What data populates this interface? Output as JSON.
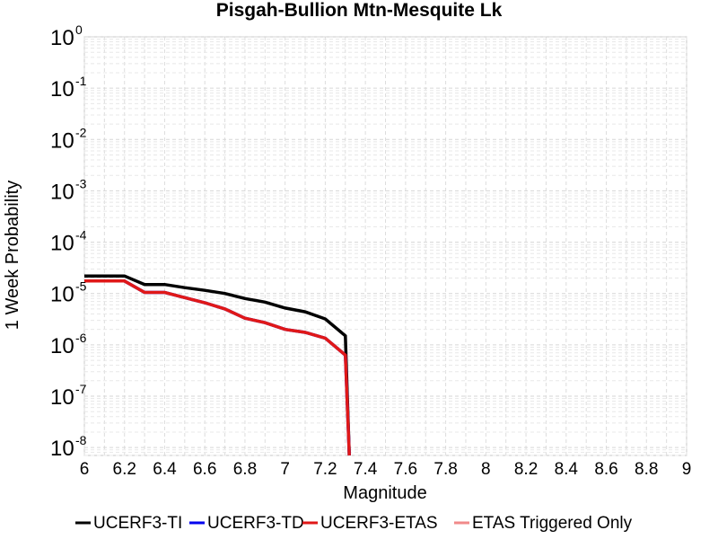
{
  "chart_data": {
    "type": "line",
    "title": "Pisgah-Bullion Mtn-Mesquite Lk",
    "xlabel": "Magnitude",
    "ylabel": "1 Week Probability",
    "x_scale": "linear",
    "y_scale": "log",
    "xlim": [
      6,
      9
    ],
    "ylim": [
      7e-09,
      1
    ],
    "x_ticks": [
      "6",
      "6.2",
      "6.4",
      "6.6",
      "6.8",
      "7",
      "7.2",
      "7.4",
      "7.6",
      "7.8",
      "8",
      "8.2",
      "8.4",
      "8.6",
      "8.8",
      "9"
    ],
    "y_ticks": [
      {
        "base": "10",
        "exp": "0",
        "value": 1
      },
      {
        "base": "10",
        "exp": "-1",
        "value": 0.1
      },
      {
        "base": "10",
        "exp": "-2",
        "value": 0.01
      },
      {
        "base": "10",
        "exp": "-3",
        "value": 0.001
      },
      {
        "base": "10",
        "exp": "-4",
        "value": 0.0001
      },
      {
        "base": "10",
        "exp": "-5",
        "value": 1e-05
      },
      {
        "base": "10",
        "exp": "-6",
        "value": 1e-06
      },
      {
        "base": "10",
        "exp": "-7",
        "value": 1e-07
      },
      {
        "base": "10",
        "exp": "-8",
        "value": 1e-08
      }
    ],
    "grid": true,
    "legend_position": "bottom",
    "series": [
      {
        "name": "UCERF3-TI",
        "color": "#000000",
        "x": [
          6.0,
          6.1,
          6.2,
          6.3,
          6.4,
          6.5,
          6.6,
          6.7,
          6.8,
          6.9,
          7.0,
          7.1,
          7.2,
          7.3,
          7.32
        ],
        "y": [
          2.2e-05,
          2.2e-05,
          2.2e-05,
          1.5e-05,
          1.5e-05,
          1.3e-05,
          1.15e-05,
          1e-05,
          8e-06,
          6.8e-06,
          5.2e-06,
          4.4e-06,
          3.2e-06,
          1.5e-06,
          7e-09
        ]
      },
      {
        "name": "UCERF3-TD",
        "color": "#0000ee",
        "x": [
          6.0,
          6.1,
          6.2,
          6.3,
          6.4,
          6.5,
          6.6,
          6.7,
          6.8,
          6.9,
          7.0,
          7.1,
          7.2,
          7.3,
          7.32
        ],
        "y": [
          1.75e-05,
          1.75e-05,
          1.75e-05,
          1.05e-05,
          1.05e-05,
          8.3e-06,
          6.6e-06,
          5e-06,
          3.3e-06,
          2.7e-06,
          2e-06,
          1.75e-06,
          1.35e-06,
          6.3e-07,
          7e-09
        ]
      },
      {
        "name": "UCERF3-ETAS",
        "color": "#e01818",
        "x": [
          6.0,
          6.1,
          6.2,
          6.3,
          6.4,
          6.5,
          6.6,
          6.7,
          6.8,
          6.9,
          7.0,
          7.1,
          7.2,
          7.3,
          7.32
        ],
        "y": [
          1.75e-05,
          1.75e-05,
          1.75e-05,
          1.05e-05,
          1.05e-05,
          8.3e-06,
          6.6e-06,
          5e-06,
          3.3e-06,
          2.7e-06,
          2e-06,
          1.75e-06,
          1.35e-06,
          6.3e-07,
          7e-09
        ]
      },
      {
        "name": "ETAS Triggered Only",
        "color": "#f08a8a",
        "x": [],
        "y": []
      }
    ]
  }
}
